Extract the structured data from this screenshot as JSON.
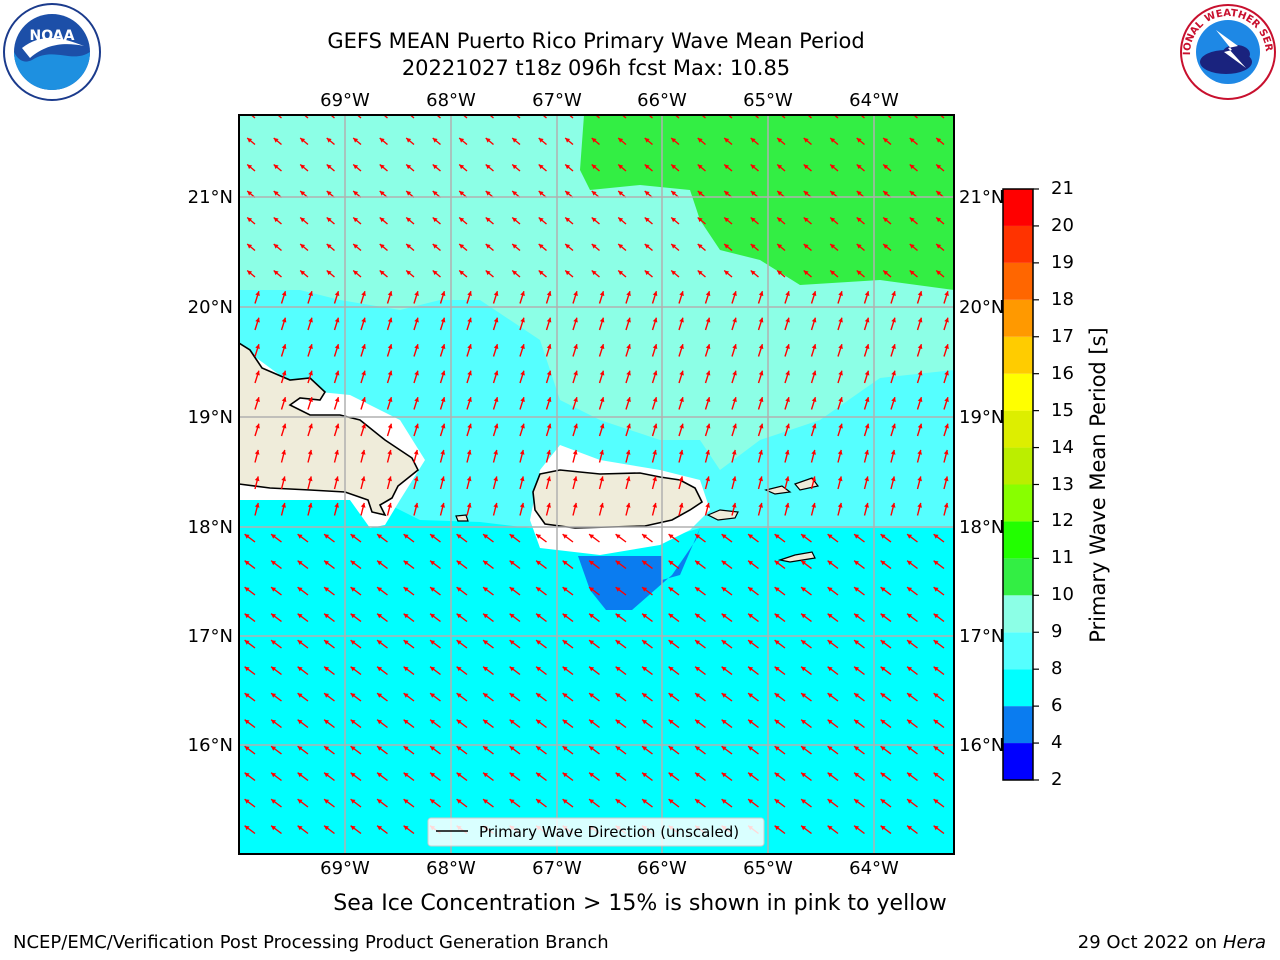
{
  "title_line1": "GEFS MEAN Puerto Rico Primary Wave Mean Period",
  "title_line2": "20221027 t18z 096h fcst   Max: 10.85",
  "lon_labels": [
    "69°W",
    "68°W",
    "67°W",
    "66°W",
    "65°W",
    "64°W"
  ],
  "lat_labels": [
    "21°N",
    "20°N",
    "19°N",
    "18°N",
    "17°N",
    "16°N"
  ],
  "legend_label": "Primary Wave Direction (unscaled)",
  "colorbar": {
    "label": "Primary Wave Mean Period [s]",
    "levels": [
      2,
      4,
      6,
      8,
      9,
      10,
      11,
      12,
      13,
      14,
      15,
      16,
      17,
      18,
      19,
      20,
      21
    ],
    "colors": [
      "#0000ff",
      "#0a7cf0",
      "#00ffff",
      "#55ffff",
      "#8cffe6",
      "#33ee44",
      "#22ff00",
      "#88ff00",
      "#bbee00",
      "#ddee00",
      "#ffff00",
      "#ffcc00",
      "#ff9900",
      "#ff6600",
      "#ff3300",
      "#ff0000"
    ]
  },
  "arrow_color": "#ff0000",
  "land_color": "#efecda",
  "footer_note": "Sea Ice Concentration > 15% is shown in pink to yellow",
  "footer_left": "NCEP/EMC/Verification Post Processing Product Generation Branch",
  "footer_date": "29 Oct 2022 on",
  "footer_host": "Hera",
  "logos": {
    "left": "NOAA",
    "right": "NATIONAL WEATHER SERVICE"
  }
}
